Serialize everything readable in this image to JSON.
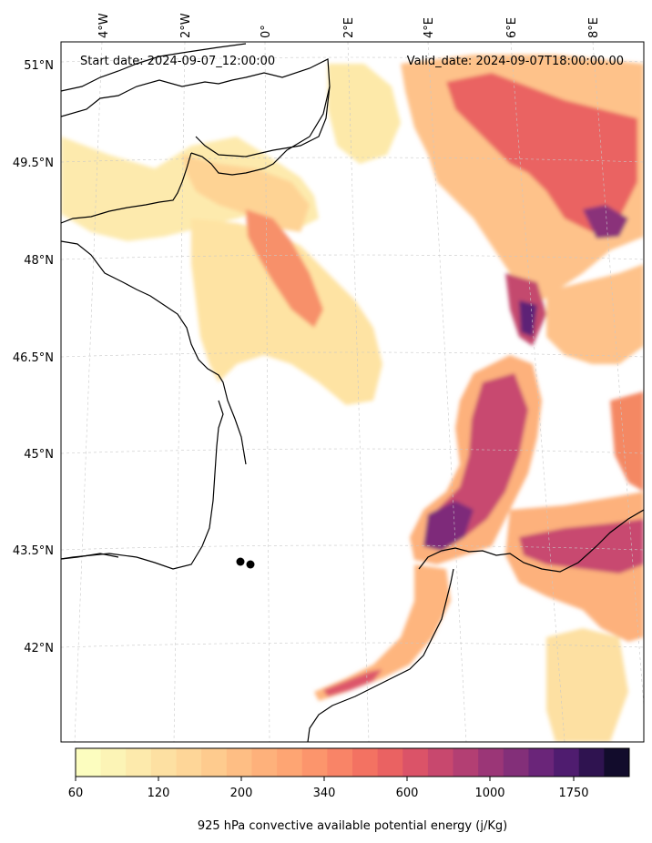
{
  "map": {
    "start_date": "Start date: 2024-09-07_12:00:00",
    "valid_date": "Valid_date: 2024-09-07T18:00:00.00",
    "lon_labels": [
      "4°W",
      "2°W",
      "0°",
      "2°E",
      "4°E",
      "6°E",
      "8°E"
    ],
    "lat_labels": [
      "51°N",
      "49.5°N",
      "48°N",
      "46.5°N",
      "45°N",
      "43.5°N",
      "42°N"
    ]
  },
  "colorbar": {
    "title": "925 hPa convective available potential energy (j/Kg)",
    "tick_labels": [
      "60",
      "120",
      "200",
      "340",
      "600",
      "1000",
      "1750"
    ],
    "colors": [
      "#fcfdbf",
      "#fcf4b6",
      "#fdeaac",
      "#fde0a2",
      "#fed698",
      "#fecb8e",
      "#febe84",
      "#feb17b",
      "#fea573",
      "#fc956c",
      "#f98467",
      "#f37262",
      "#ea6262",
      "#db5368",
      "#c8486e",
      "#b33f73",
      "#9b3677",
      "#832f79",
      "#6a2579",
      "#4f1c6f",
      "#2f1350",
      "#120c2c"
    ]
  },
  "markers": {
    "count": 2,
    "color": "#000000"
  }
}
